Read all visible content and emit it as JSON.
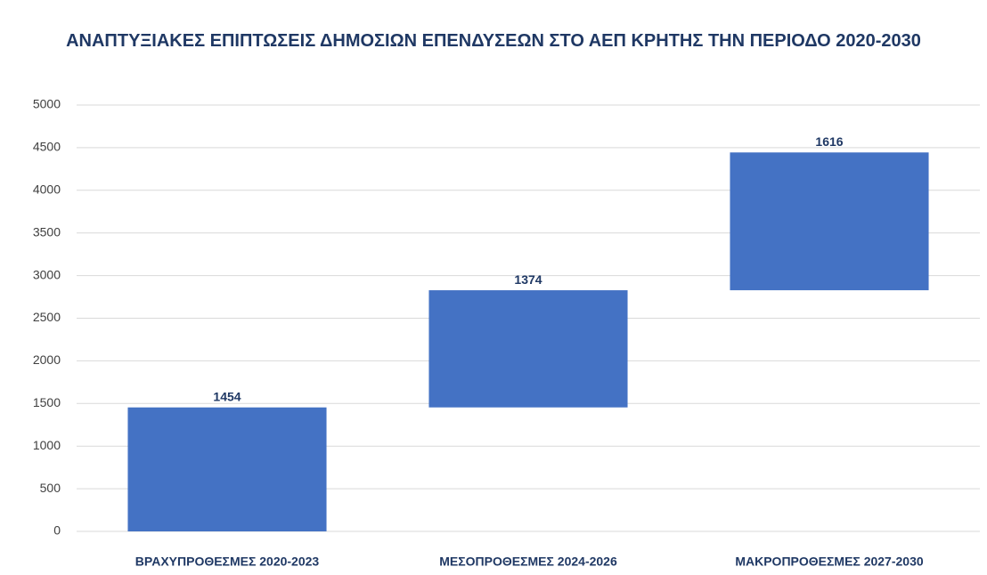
{
  "chart_data": {
    "type": "waterfall",
    "title": "ΑΝΑΠΤΥΞΙΑΚΕΣ ΕΠΙΠΤΩΣΕΙΣ ΔΗΜΟΣΙΩΝ ΕΠΕΝΔΥΣΕΩΝ ΣΤΟ ΑΕΠ ΚΡΗΤΗΣ ΤΗΝ ΠΕΡΙΟΔΟ 2020-2030",
    "categories": [
      "ΒΡΑΧΥΠΡΟΘΕΣΜΕΣ 2020-2023",
      "ΜΕΣΟΠΡΟΘΕΣΜΕΣ 2024-2026",
      "ΜΑΚΡΟΠΡΟΘΕΣΜΕΣ 2027-2030"
    ],
    "values": [
      1454,
      1374,
      1616
    ],
    "color": "#4472c4",
    "ylim": [
      0,
      5000
    ],
    "yticks": [
      0,
      500,
      1000,
      1500,
      2000,
      2500,
      3000,
      3500,
      4000,
      4500,
      5000
    ],
    "grid": true
  }
}
